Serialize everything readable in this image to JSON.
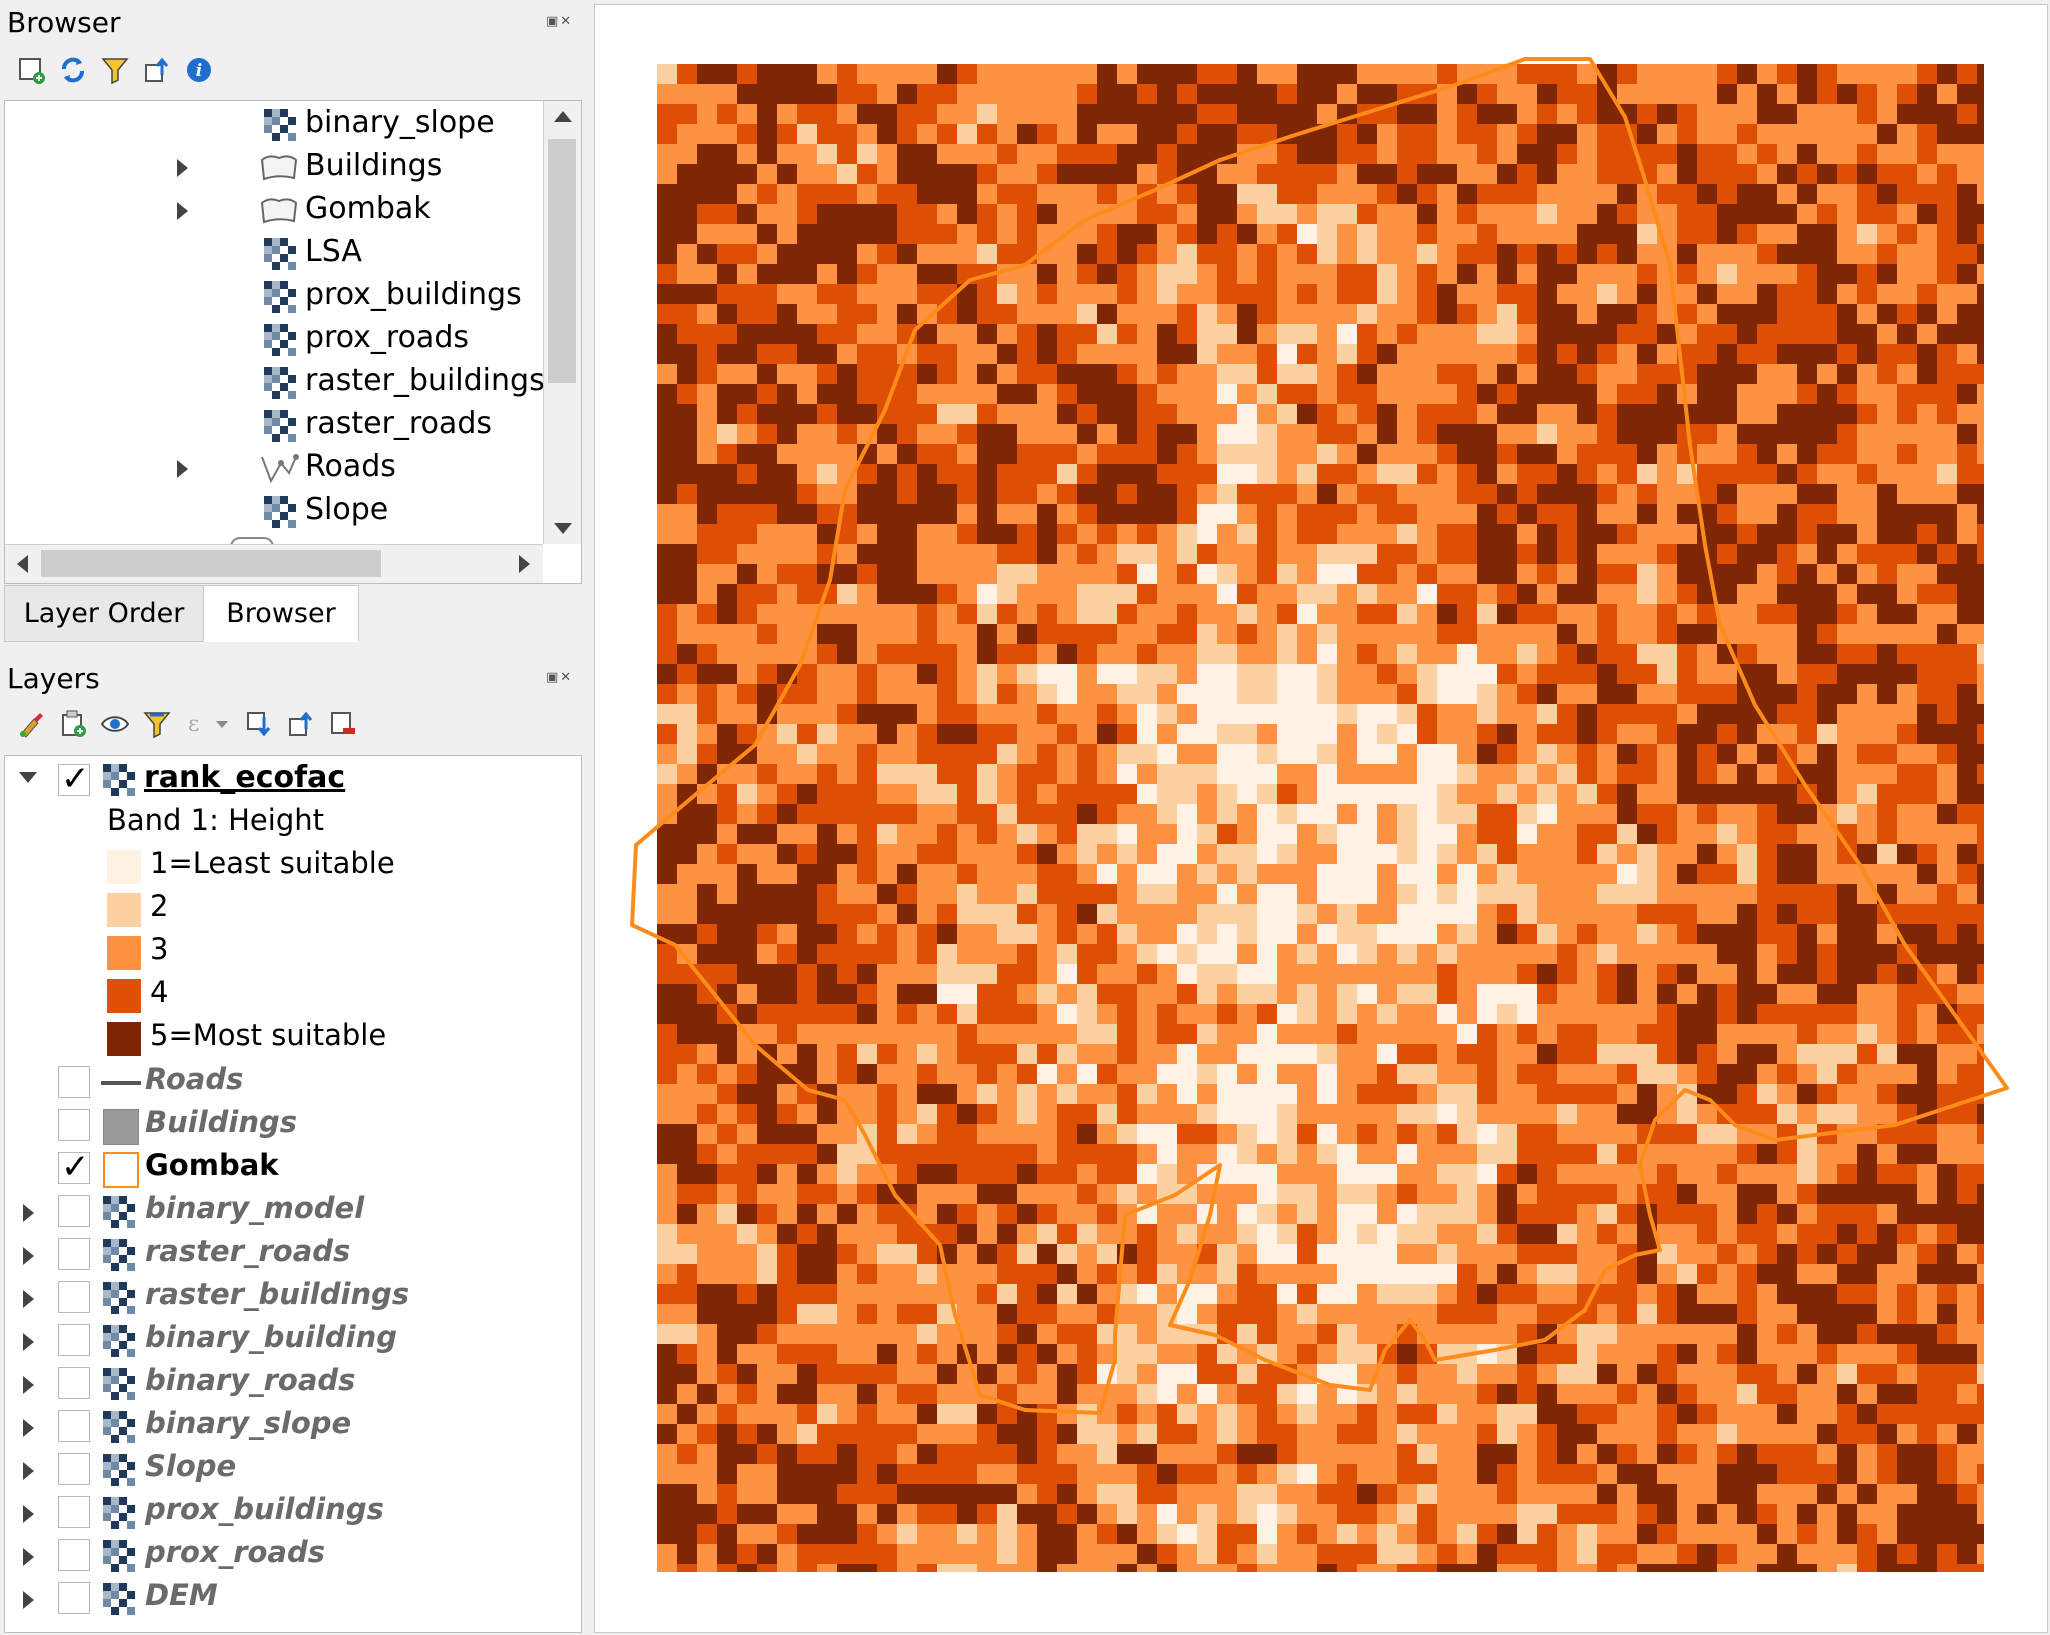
{
  "browser_panel": {
    "title": "Browser",
    "items": [
      {
        "label": "binary_slope",
        "type": "raster",
        "expandable": false
      },
      {
        "label": "Buildings",
        "type": "polygon",
        "expandable": true
      },
      {
        "label": "Gombak",
        "type": "polygon",
        "expandable": true
      },
      {
        "label": "LSA",
        "type": "raster",
        "expandable": false
      },
      {
        "label": "prox_buildings",
        "type": "raster",
        "expandable": false
      },
      {
        "label": "prox_roads",
        "type": "raster",
        "expandable": false
      },
      {
        "label": "raster_buildings",
        "type": "raster",
        "expandable": false
      },
      {
        "label": "raster_roads",
        "type": "raster",
        "expandable": false
      },
      {
        "label": "Roads",
        "type": "line",
        "expandable": true
      },
      {
        "label": "Slope",
        "type": "raster",
        "expandable": false
      }
    ]
  },
  "tabs": [
    {
      "label": "Layer Order",
      "active": false
    },
    {
      "label": "Browser",
      "active": true
    }
  ],
  "layers_panel": {
    "title": "Layers",
    "active_layer": {
      "label": "rank_ecofac",
      "checked": true
    },
    "band_label": "Band 1: Height",
    "legend": [
      {
        "label": "1=Least suitable",
        "color": "#fff1e3"
      },
      {
        "label": "2",
        "color": "#fdd0a2"
      },
      {
        "label": "3",
        "color": "#fd9243"
      },
      {
        "label": "4",
        "color": "#de4e05"
      },
      {
        "label": "5=Most suitable",
        "color": "#7f2704"
      }
    ],
    "vector_layers": [
      {
        "label": "Roads",
        "checked": false,
        "symbol": "line"
      },
      {
        "label": "Buildings",
        "checked": false,
        "symbol": "fill"
      },
      {
        "label": "Gombak",
        "checked": true,
        "symbol": "outline"
      }
    ],
    "raster_layers": [
      {
        "label": "binary_model"
      },
      {
        "label": "raster_roads"
      },
      {
        "label": "raster_buildings"
      },
      {
        "label": "binary_building"
      },
      {
        "label": "binary_roads"
      },
      {
        "label": "binary_slope"
      },
      {
        "label": "Slope"
      },
      {
        "label": "prox_buildings"
      },
      {
        "label": "prox_roads"
      },
      {
        "label": "DEM"
      }
    ]
  },
  "colors": {
    "boundary": "#ff8c1a",
    "accent": "#1e6fd0"
  }
}
